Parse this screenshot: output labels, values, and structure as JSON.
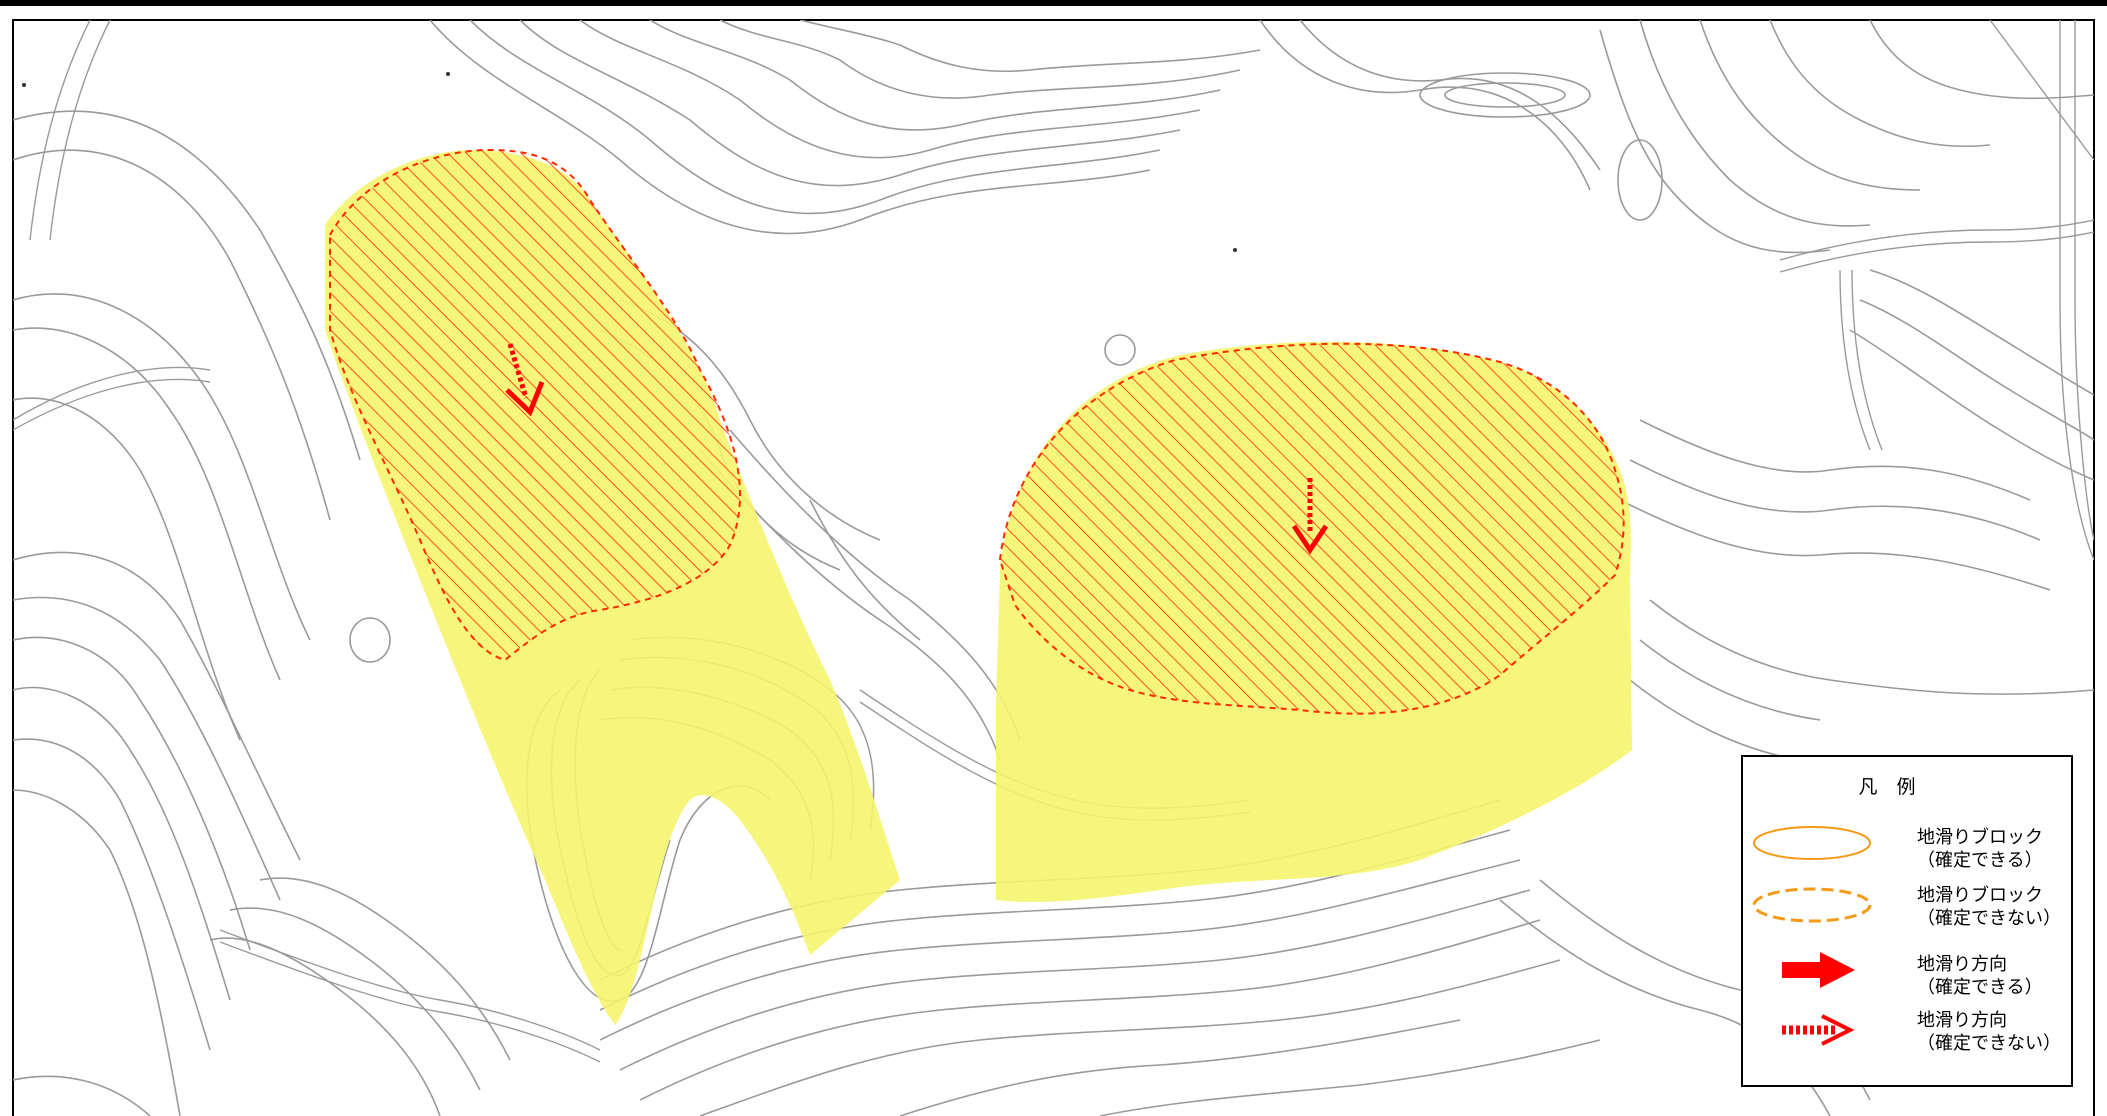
{
  "legend": {
    "title": "凡　例",
    "items": [
      {
        "label_line1": "地滑りブロック",
        "label_line2": "（確定できる）",
        "symbol": "solid-orange-ellipse"
      },
      {
        "label_line1": "地滑りブロック",
        "label_line2": "（確定できない）",
        "symbol": "dashed-orange-ellipse"
      },
      {
        "label_line1": "地滑り方向",
        "label_line2": "（確定できる）",
        "symbol": "solid-red-arrow"
      },
      {
        "label_line1": "地滑り方向",
        "label_line2": "（確定できない）",
        "symbol": "dashed-red-arrow"
      }
    ]
  },
  "colors": {
    "hazard_zone": "#f5f56e",
    "landslide_block": "#ff2a00",
    "legend_ellipse": "#f59a16",
    "arrow": "#ff0000",
    "contour": "#9a9a9a",
    "frame": "#000000"
  }
}
